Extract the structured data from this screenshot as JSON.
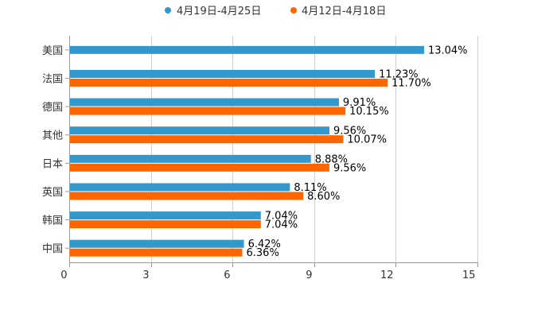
{
  "chart_data": {
    "type": "bar",
    "orientation": "horizontal",
    "categories": [
      "美国",
      "法国",
      "德国",
      "其他",
      "日本",
      "英国",
      "韩国",
      "中国"
    ],
    "series": [
      {
        "name": "4月19日-4月25日",
        "color": "#3399cc",
        "values": [
          13.04,
          11.23,
          9.91,
          9.56,
          8.88,
          8.11,
          7.04,
          6.42
        ],
        "labels": [
          "13.04%",
          "11.23%",
          "9.91%",
          "9.56%",
          "8.88%",
          "8.11%",
          "7.04%",
          "6.42%"
        ]
      },
      {
        "name": "4月12日-4月18日",
        "color": "#ff6600",
        "values": [
          null,
          11.7,
          10.15,
          10.07,
          9.56,
          8.6,
          7.04,
          6.36
        ],
        "labels": [
          null,
          "11.70%",
          "10.15%",
          "10.07%",
          "9.56%",
          "8.60%",
          "7.04%",
          "6.36%"
        ]
      }
    ],
    "xlim": [
      0,
      15
    ],
    "xticks": [
      0,
      3,
      6,
      9,
      12,
      15
    ],
    "xtick_labels": [
      "0",
      "3",
      "6",
      "9",
      "12",
      "15"
    ],
    "grid": true,
    "legend_position": "top-center",
    "title": "",
    "xlabel": "",
    "ylabel": ""
  }
}
